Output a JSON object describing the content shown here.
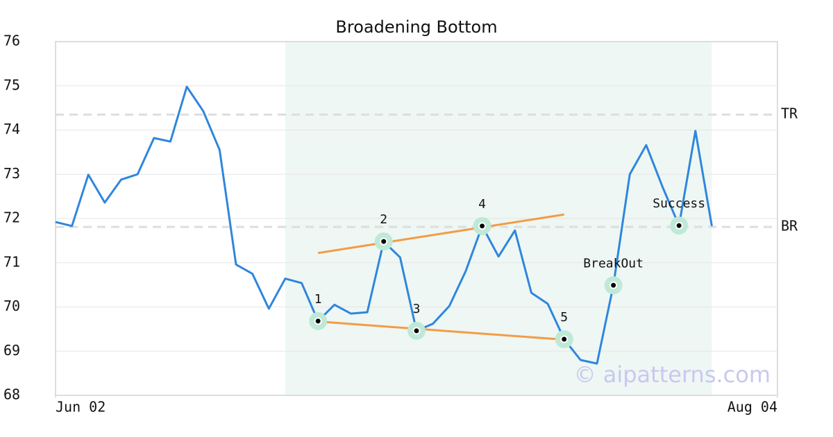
{
  "chart_data": {
    "type": "line",
    "title": "Broadening Bottom",
    "x": [
      0,
      1,
      2,
      3,
      4,
      5,
      6,
      7,
      8,
      9,
      10,
      11,
      12,
      13,
      14,
      15,
      16,
      17,
      18,
      19,
      20,
      21,
      22,
      23,
      24,
      25,
      26,
      27,
      28,
      29,
      30,
      31,
      32,
      33,
      34,
      35,
      36,
      37,
      38,
      39,
      40
    ],
    "values": [
      71.92,
      71.83,
      72.99,
      72.36,
      72.88,
      73.0,
      73.82,
      73.74,
      74.98,
      74.43,
      73.55,
      70.96,
      70.75,
      69.96,
      70.64,
      70.54,
      69.68,
      70.05,
      69.85,
      69.88,
      71.48,
      71.12,
      69.46,
      69.62,
      70.02,
      70.81,
      71.83,
      71.14,
      71.73,
      70.32,
      70.07,
      69.27,
      68.8,
      68.72,
      70.49,
      73.0,
      73.66,
      72.71,
      71.84,
      73.98,
      71.83
    ],
    "color": "#2e86de",
    "xlim": [
      0,
      44
    ],
    "xticks": [
      {
        "value": 0,
        "label": "Jun 02"
      },
      {
        "value": 44,
        "label": "Aug 04"
      }
    ],
    "ylim": [
      68,
      76
    ],
    "yticks": [
      68,
      69,
      70,
      71,
      72,
      73,
      74,
      75,
      76
    ],
    "grid": true,
    "highlight": {
      "x": [
        14,
        40
      ],
      "color": "#eef7f3"
    },
    "levels": [
      {
        "label": "TR",
        "value": 74.35
      },
      {
        "label": "BR",
        "value": 71.81
      }
    ],
    "trendline_color": "#f39c45",
    "trendlines": [
      {
        "x": [
          16,
          31
        ],
        "values": [
          71.22,
          72.09
        ]
      },
      {
        "x": [
          16,
          31
        ],
        "values": [
          69.67,
          69.26
        ]
      }
    ],
    "markers": [
      {
        "label": "1",
        "x": 16,
        "value": 69.68
      },
      {
        "label": "2",
        "x": 20,
        "value": 71.48
      },
      {
        "label": "3",
        "x": 22,
        "value": 69.46
      },
      {
        "label": "4",
        "x": 26,
        "value": 71.83
      },
      {
        "label": "5",
        "x": 31,
        "value": 69.27
      },
      {
        "label": "BreakOut",
        "x": 34,
        "value": 70.49
      },
      {
        "label": "Success",
        "x": 38,
        "value": 71.84
      }
    ],
    "watermark": "© aipatterns.com"
  }
}
